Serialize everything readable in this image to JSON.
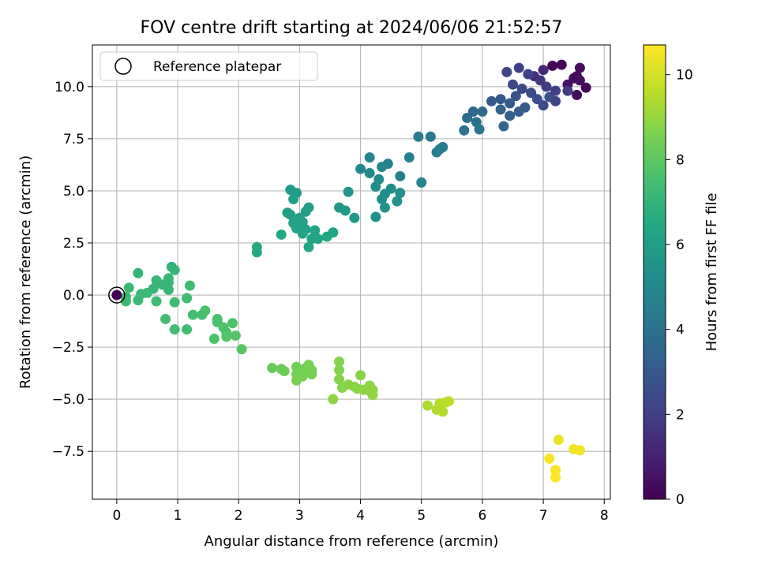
{
  "chart_data": {
    "type": "scatter",
    "title": "FOV centre drift starting at 2024/06/06 21:52:57",
    "xlabel": "Angular distance from reference (arcmin)",
    "ylabel": "Rotation from reference (arcmin)",
    "xlim": [
      -0.4,
      8.1
    ],
    "ylim": [
      -9.8,
      12.0
    ],
    "xticks": [
      0,
      1,
      2,
      3,
      4,
      5,
      6,
      7,
      8
    ],
    "xtick_labels": [
      "0",
      "1",
      "2",
      "3",
      "4",
      "5",
      "6",
      "7",
      "8"
    ],
    "yticks": [
      -7.5,
      -5.0,
      -2.5,
      0.0,
      2.5,
      5.0,
      7.5,
      10.0
    ],
    "ytick_labels": [
      "−7.5",
      "−5.0",
      "−2.5",
      "0.0",
      "2.5",
      "5.0",
      "7.5",
      "10.0"
    ],
    "grid": true,
    "legend": {
      "position": "top-left",
      "entries": [
        "Reference platepar"
      ]
    },
    "reference_point": {
      "x": 0,
      "y": 0
    },
    "colorbar": {
      "label": "Hours from first FF file",
      "colormap": "viridis",
      "range": [
        0,
        10.7
      ],
      "ticks": [
        0,
        2,
        4,
        6,
        8,
        10
      ],
      "tick_labels": [
        "0",
        "2",
        "4",
        "6",
        "8",
        "10"
      ]
    },
    "points": [
      {
        "x": 7.15,
        "y": 11.0,
        "c": 0.1
      },
      {
        "x": 7.3,
        "y": 11.05,
        "c": 0.2
      },
      {
        "x": 7.6,
        "y": 10.9,
        "c": 0.3
      },
      {
        "x": 7.5,
        "y": 10.4,
        "c": 0.3
      },
      {
        "x": 7.55,
        "y": 10.5,
        "c": 0.2
      },
      {
        "x": 7.6,
        "y": 10.3,
        "c": 0.4
      },
      {
        "x": 7.7,
        "y": 9.95,
        "c": 0.2
      },
      {
        "x": 7.55,
        "y": 9.6,
        "c": 0.3
      },
      {
        "x": 7.4,
        "y": 10.1,
        "c": 0.5
      },
      {
        "x": 7.0,
        "y": 10.8,
        "c": 1.2
      },
      {
        "x": 6.85,
        "y": 10.5,
        "c": 1.5
      },
      {
        "x": 6.95,
        "y": 10.3,
        "c": 1.7
      },
      {
        "x": 7.05,
        "y": 10.0,
        "c": 1.9
      },
      {
        "x": 6.6,
        "y": 10.9,
        "c": 2.0
      },
      {
        "x": 6.75,
        "y": 10.6,
        "c": 2.1
      },
      {
        "x": 6.4,
        "y": 10.7,
        "c": 2.2
      },
      {
        "x": 6.5,
        "y": 10.1,
        "c": 2.3
      },
      {
        "x": 6.65,
        "y": 9.9,
        "c": 2.4
      },
      {
        "x": 6.8,
        "y": 9.7,
        "c": 2.5
      },
      {
        "x": 6.9,
        "y": 9.4,
        "c": 2.6
      },
      {
        "x": 7.1,
        "y": 9.5,
        "c": 2.7
      },
      {
        "x": 6.55,
        "y": 9.55,
        "c": 2.8
      },
      {
        "x": 6.3,
        "y": 9.4,
        "c": 2.9
      },
      {
        "x": 6.15,
        "y": 9.3,
        "c": 3.0
      },
      {
        "x": 6.45,
        "y": 9.2,
        "c": 3.0
      },
      {
        "x": 6.7,
        "y": 9.0,
        "c": 3.1
      },
      {
        "x": 6.6,
        "y": 8.8,
        "c": 3.2
      },
      {
        "x": 6.45,
        "y": 8.6,
        "c": 3.3
      },
      {
        "x": 6.3,
        "y": 8.9,
        "c": 3.4
      },
      {
        "x": 6.35,
        "y": 8.1,
        "c": 3.5
      },
      {
        "x": 7.2,
        "y": 9.3,
        "c": 2.1
      },
      {
        "x": 7.0,
        "y": 9.1,
        "c": 2.4
      },
      {
        "x": 7.4,
        "y": 9.8,
        "c": 1.8
      },
      {
        "x": 7.2,
        "y": 9.8,
        "c": 2.0
      },
      {
        "x": 5.85,
        "y": 8.8,
        "c": 3.6
      },
      {
        "x": 6.0,
        "y": 8.8,
        "c": 3.7
      },
      {
        "x": 5.75,
        "y": 8.5,
        "c": 3.8
      },
      {
        "x": 5.9,
        "y": 8.3,
        "c": 3.9
      },
      {
        "x": 5.7,
        "y": 7.9,
        "c": 4.0
      },
      {
        "x": 5.95,
        "y": 7.95,
        "c": 4.1
      },
      {
        "x": 5.35,
        "y": 7.1,
        "c": 4.3
      },
      {
        "x": 5.3,
        "y": 7.0,
        "c": 4.4
      },
      {
        "x": 5.25,
        "y": 6.85,
        "c": 4.5
      },
      {
        "x": 5.15,
        "y": 7.6,
        "c": 4.4
      },
      {
        "x": 4.95,
        "y": 7.6,
        "c": 4.5
      },
      {
        "x": 4.8,
        "y": 6.6,
        "c": 4.6
      },
      {
        "x": 4.65,
        "y": 5.7,
        "c": 4.7
      },
      {
        "x": 5.0,
        "y": 5.4,
        "c": 4.8
      },
      {
        "x": 4.45,
        "y": 6.3,
        "c": 4.7
      },
      {
        "x": 4.35,
        "y": 6.15,
        "c": 4.8
      },
      {
        "x": 4.15,
        "y": 6.6,
        "c": 4.9
      },
      {
        "x": 4.15,
        "y": 5.85,
        "c": 5.0
      },
      {
        "x": 4.0,
        "y": 6.05,
        "c": 5.0
      },
      {
        "x": 4.3,
        "y": 5.55,
        "c": 5.1
      },
      {
        "x": 4.25,
        "y": 5.2,
        "c": 5.2
      },
      {
        "x": 4.5,
        "y": 5.1,
        "c": 5.2
      },
      {
        "x": 4.4,
        "y": 4.85,
        "c": 5.3
      },
      {
        "x": 4.35,
        "y": 4.6,
        "c": 5.3
      },
      {
        "x": 4.65,
        "y": 4.9,
        "c": 5.4
      },
      {
        "x": 4.6,
        "y": 4.5,
        "c": 5.4
      },
      {
        "x": 4.4,
        "y": 4.2,
        "c": 5.5
      },
      {
        "x": 4.25,
        "y": 3.75,
        "c": 5.5
      },
      {
        "x": 3.8,
        "y": 4.95,
        "c": 5.6
      },
      {
        "x": 3.65,
        "y": 4.2,
        "c": 5.7
      },
      {
        "x": 3.75,
        "y": 4.05,
        "c": 5.8
      },
      {
        "x": 3.9,
        "y": 3.7,
        "c": 5.8
      },
      {
        "x": 2.85,
        "y": 5.05,
        "c": 5.9
      },
      {
        "x": 2.95,
        "y": 4.9,
        "c": 5.9
      },
      {
        "x": 2.9,
        "y": 4.6,
        "c": 6.0
      },
      {
        "x": 3.15,
        "y": 4.2,
        "c": 6.0
      },
      {
        "x": 3.1,
        "y": 4.0,
        "c": 6.0
      },
      {
        "x": 2.8,
        "y": 3.95,
        "c": 6.1
      },
      {
        "x": 2.85,
        "y": 3.85,
        "c": 6.1
      },
      {
        "x": 3.0,
        "y": 3.7,
        "c": 6.1
      },
      {
        "x": 3.05,
        "y": 3.5,
        "c": 6.2
      },
      {
        "x": 2.9,
        "y": 3.45,
        "c": 6.2
      },
      {
        "x": 2.95,
        "y": 3.2,
        "c": 6.2
      },
      {
        "x": 3.1,
        "y": 3.15,
        "c": 6.2
      },
      {
        "x": 3.05,
        "y": 2.95,
        "c": 6.3
      },
      {
        "x": 3.25,
        "y": 3.1,
        "c": 6.3
      },
      {
        "x": 3.2,
        "y": 2.7,
        "c": 6.3
      },
      {
        "x": 3.3,
        "y": 2.7,
        "c": 6.3
      },
      {
        "x": 3.55,
        "y": 3.0,
        "c": 6.3
      },
      {
        "x": 3.45,
        "y": 2.8,
        "c": 6.4
      },
      {
        "x": 2.7,
        "y": 2.9,
        "c": 6.4
      },
      {
        "x": 3.15,
        "y": 2.3,
        "c": 6.4
      },
      {
        "x": 2.3,
        "y": 2.3,
        "c": 6.5
      },
      {
        "x": 2.3,
        "y": 2.05,
        "c": 6.5
      },
      {
        "x": 0.9,
        "y": 1.35,
        "c": 7.0
      },
      {
        "x": 0.95,
        "y": 1.2,
        "c": 7.0
      },
      {
        "x": 0.35,
        "y": 1.05,
        "c": 7.0
      },
      {
        "x": 0.85,
        "y": 0.8,
        "c": 7.1
      },
      {
        "x": 0.85,
        "y": 0.6,
        "c": 7.1
      },
      {
        "x": 0.65,
        "y": 0.7,
        "c": 7.1
      },
      {
        "x": 0.75,
        "y": 0.5,
        "c": 7.1
      },
      {
        "x": 0.85,
        "y": 0.25,
        "c": 7.1
      },
      {
        "x": 0.6,
        "y": 0.3,
        "c": 7.1
      },
      {
        "x": 0.2,
        "y": 0.35,
        "c": 7.2
      },
      {
        "x": 0.5,
        "y": 0.1,
        "c": 7.2
      },
      {
        "x": 0.4,
        "y": 0.05,
        "c": 7.2
      },
      {
        "x": 0.15,
        "y": -0.1,
        "c": 7.2
      },
      {
        "x": 0.15,
        "y": -0.3,
        "c": 7.2
      },
      {
        "x": 0.35,
        "y": -0.25,
        "c": 7.2
      },
      {
        "x": 0.65,
        "y": -0.3,
        "c": 7.3
      },
      {
        "x": 1.2,
        "y": 0.45,
        "c": 7.3
      },
      {
        "x": 1.15,
        "y": -0.15,
        "c": 7.3
      },
      {
        "x": 0.95,
        "y": -0.35,
        "c": 7.3
      },
      {
        "x": 0.8,
        "y": -1.15,
        "c": 7.4
      },
      {
        "x": 0.95,
        "y": -1.65,
        "c": 7.4
      },
      {
        "x": 1.15,
        "y": -1.65,
        "c": 7.4
      },
      {
        "x": 1.25,
        "y": -0.95,
        "c": 7.5
      },
      {
        "x": 1.4,
        "y": -0.95,
        "c": 7.5
      },
      {
        "x": 1.45,
        "y": -0.75,
        "c": 7.6
      },
      {
        "x": 1.65,
        "y": -1.15,
        "c": 7.6
      },
      {
        "x": 1.65,
        "y": -1.3,
        "c": 7.6
      },
      {
        "x": 1.75,
        "y": -1.55,
        "c": 7.7
      },
      {
        "x": 1.9,
        "y": -1.35,
        "c": 7.7
      },
      {
        "x": 1.8,
        "y": -1.8,
        "c": 7.7
      },
      {
        "x": 1.6,
        "y": -2.1,
        "c": 7.7
      },
      {
        "x": 1.8,
        "y": -2.0,
        "c": 7.8
      },
      {
        "x": 1.95,
        "y": -1.95,
        "c": 7.8
      },
      {
        "x": 2.05,
        "y": -2.6,
        "c": 7.9
      },
      {
        "x": 2.55,
        "y": -3.5,
        "c": 8.2
      },
      {
        "x": 2.7,
        "y": -3.55,
        "c": 8.3
      },
      {
        "x": 2.75,
        "y": -3.65,
        "c": 8.3
      },
      {
        "x": 2.95,
        "y": -3.45,
        "c": 8.4
      },
      {
        "x": 3.0,
        "y": -3.6,
        "c": 8.4
      },
      {
        "x": 3.1,
        "y": -3.5,
        "c": 8.4
      },
      {
        "x": 3.15,
        "y": -3.35,
        "c": 8.5
      },
      {
        "x": 3.2,
        "y": -3.6,
        "c": 8.5
      },
      {
        "x": 3.2,
        "y": -3.8,
        "c": 8.5
      },
      {
        "x": 2.95,
        "y": -3.8,
        "c": 8.5
      },
      {
        "x": 2.95,
        "y": -4.1,
        "c": 8.5
      },
      {
        "x": 3.05,
        "y": -3.9,
        "c": 8.5
      },
      {
        "x": 3.65,
        "y": -3.2,
        "c": 8.7
      },
      {
        "x": 3.65,
        "y": -3.6,
        "c": 8.7
      },
      {
        "x": 3.65,
        "y": -4.05,
        "c": 8.7
      },
      {
        "x": 3.7,
        "y": -4.45,
        "c": 8.8
      },
      {
        "x": 3.8,
        "y": -4.3,
        "c": 8.8
      },
      {
        "x": 3.9,
        "y": -4.4,
        "c": 8.8
      },
      {
        "x": 3.95,
        "y": -4.5,
        "c": 8.8
      },
      {
        "x": 4.0,
        "y": -3.85,
        "c": 8.8
      },
      {
        "x": 4.05,
        "y": -4.55,
        "c": 8.9
      },
      {
        "x": 4.15,
        "y": -4.35,
        "c": 8.9
      },
      {
        "x": 4.15,
        "y": -4.6,
        "c": 8.9
      },
      {
        "x": 4.2,
        "y": -4.55,
        "c": 8.9
      },
      {
        "x": 4.2,
        "y": -4.8,
        "c": 8.9
      },
      {
        "x": 3.55,
        "y": -5.0,
        "c": 8.9
      },
      {
        "x": 5.1,
        "y": -5.3,
        "c": 9.4
      },
      {
        "x": 5.25,
        "y": -5.5,
        "c": 9.5
      },
      {
        "x": 5.3,
        "y": -5.2,
        "c": 9.5
      },
      {
        "x": 5.35,
        "y": -5.6,
        "c": 9.5
      },
      {
        "x": 5.4,
        "y": -5.15,
        "c": 9.6
      },
      {
        "x": 5.45,
        "y": -5.1,
        "c": 9.6
      },
      {
        "x": 7.25,
        "y": -6.95,
        "c": 10.4
      },
      {
        "x": 7.5,
        "y": -7.4,
        "c": 10.5
      },
      {
        "x": 7.6,
        "y": -7.45,
        "c": 10.5
      },
      {
        "x": 7.1,
        "y": -7.85,
        "c": 10.6
      },
      {
        "x": 7.2,
        "y": -8.4,
        "c": 10.6
      },
      {
        "x": 7.2,
        "y": -8.75,
        "c": 10.7
      },
      {
        "x": 0.0,
        "y": 0.0,
        "c": 0.0
      }
    ]
  }
}
